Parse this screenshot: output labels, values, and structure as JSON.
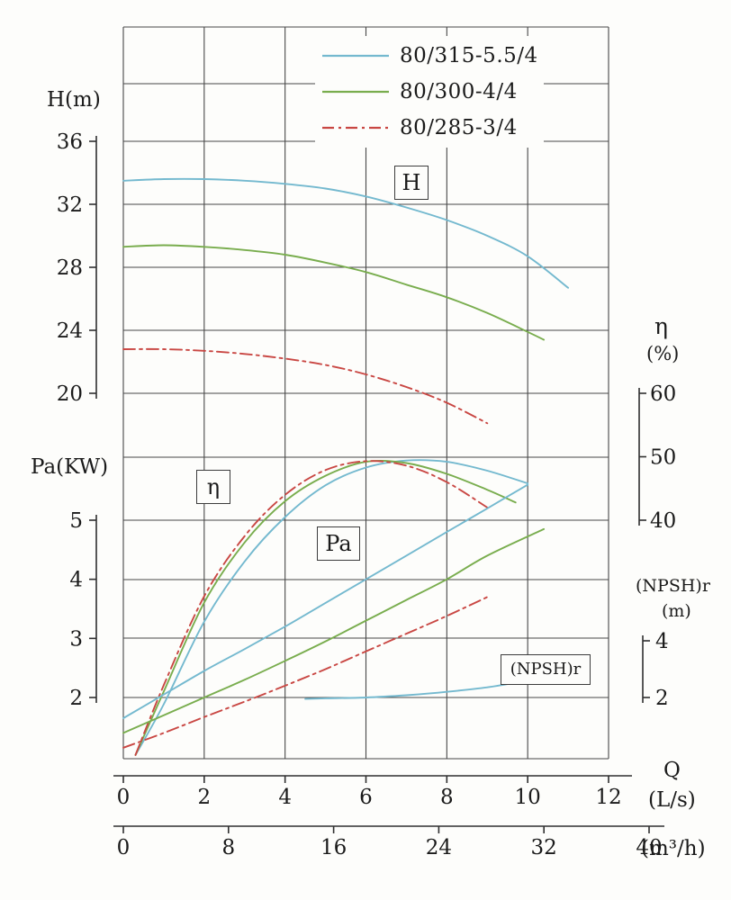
{
  "page": {
    "background": "#fdfdfb",
    "grid_color": "#474747",
    "text_color": "#1a1a1a"
  },
  "legend": {
    "items": [
      {
        "label": "80/315-5.5/4",
        "color": "#74b9cf",
        "dasharray": "none"
      },
      {
        "label": "80/300-4/4",
        "color": "#79ad4e",
        "dasharray": "none"
      },
      {
        "label": "80/285-3/4",
        "color": "#c94743",
        "dasharray": "13 5 3 5"
      }
    ]
  },
  "axis_titles": {
    "h": "H(m)",
    "pa": "Pa(KW)",
    "eta": "η",
    "eta_unit": "(%)",
    "npsh": "(NPSH)r",
    "npsh_unit": "(m)",
    "q": "Q",
    "q_unit": "(L/s)",
    "q2_unit": "(m³/h)"
  },
  "annotations": {
    "h": "H",
    "eta": "η",
    "pa": "Pa",
    "npshr": "(NPSH)r"
  },
  "chart_data": {
    "type": "line",
    "title": "",
    "x_axis": {
      "name": "Q",
      "unit": "(L/s)",
      "ticks": [
        0,
        2,
        4,
        6,
        8,
        10,
        12
      ],
      "range": [
        0,
        12
      ]
    },
    "x_axis_secondary": {
      "unit": "(m³/h)",
      "ticks": [
        0,
        8,
        16,
        24,
        32,
        40
      ]
    },
    "y_axes": {
      "H": {
        "title": "H(m)",
        "ticks": [
          36,
          32,
          28,
          24,
          20
        ]
      },
      "eta": {
        "title": "η (%)",
        "ticks": [
          60,
          50,
          40
        ]
      },
      "Pa": {
        "title": "Pa(KW)",
        "ticks": [
          5,
          4,
          3,
          2
        ]
      },
      "npsh": {
        "title": "(NPSH)r (m)",
        "ticks": [
          4,
          2
        ]
      }
    },
    "grid": true,
    "legend_position": "top",
    "series": [
      {
        "name": "H 80/315-5.5/4",
        "model": "80/315-5.5/4",
        "family": "H",
        "axis": "H",
        "color": "#74b9cf",
        "style": "solid",
        "points": [
          [
            0,
            33.5
          ],
          [
            1,
            33.6
          ],
          [
            2,
            33.6
          ],
          [
            3,
            33.5
          ],
          [
            4,
            33.3
          ],
          [
            5,
            33.0
          ],
          [
            6,
            32.5
          ],
          [
            7,
            31.8
          ],
          [
            8,
            31.0
          ],
          [
            9,
            30.0
          ],
          [
            10,
            28.7
          ],
          [
            11,
            26.7
          ]
        ]
      },
      {
        "name": "H 80/300-4/4",
        "model": "80/300-4/4",
        "family": "H",
        "axis": "H",
        "color": "#79ad4e",
        "style": "solid",
        "points": [
          [
            0,
            29.3
          ],
          [
            1,
            29.4
          ],
          [
            2,
            29.3
          ],
          [
            3,
            29.1
          ],
          [
            4,
            28.8
          ],
          [
            5,
            28.3
          ],
          [
            6,
            27.7
          ],
          [
            7,
            26.9
          ],
          [
            8,
            26.1
          ],
          [
            9,
            25.1
          ],
          [
            10,
            23.9
          ],
          [
            10.4,
            23.4
          ]
        ]
      },
      {
        "name": "H 80/285-3/4",
        "model": "80/285-3/4",
        "family": "H",
        "axis": "H",
        "color": "#c94743",
        "style": "dashdot",
        "points": [
          [
            0,
            22.8
          ],
          [
            1,
            22.8
          ],
          [
            2,
            22.7
          ],
          [
            3,
            22.5
          ],
          [
            4,
            22.2
          ],
          [
            5,
            21.8
          ],
          [
            6,
            21.2
          ],
          [
            7,
            20.4
          ],
          [
            8,
            19.4
          ],
          [
            9,
            18.1
          ]
        ]
      },
      {
        "name": "eta 80/315-5.5/4",
        "model": "80/315-5.5/4",
        "family": "eta",
        "axis": "eta",
        "color": "#74b9cf",
        "style": "solid",
        "points": [
          [
            0.3,
            3
          ],
          [
            1,
            11
          ],
          [
            2,
            24
          ],
          [
            3,
            33.5
          ],
          [
            4,
            40.5
          ],
          [
            5,
            45.5
          ],
          [
            6,
            48.3
          ],
          [
            7,
            49.4
          ],
          [
            8,
            49.2
          ],
          [
            9,
            47.8
          ],
          [
            10,
            45.8
          ]
        ]
      },
      {
        "name": "eta 80/300-4/4",
        "model": "80/300-4/4",
        "family": "eta",
        "axis": "eta",
        "color": "#79ad4e",
        "style": "solid",
        "points": [
          [
            0.3,
            3
          ],
          [
            1,
            13
          ],
          [
            2,
            27
          ],
          [
            3,
            36.5
          ],
          [
            4,
            43.0
          ],
          [
            5,
            47.0
          ],
          [
            6,
            49.2
          ],
          [
            7,
            49.0
          ],
          [
            8,
            47.3
          ],
          [
            9,
            44.8
          ],
          [
            9.7,
            42.8
          ]
        ]
      },
      {
        "name": "eta 80/285-3/4",
        "model": "80/285-3/4",
        "family": "eta",
        "axis": "eta",
        "color": "#c94743",
        "style": "dashdot",
        "points": [
          [
            0.3,
            3
          ],
          [
            1,
            14
          ],
          [
            2,
            28
          ],
          [
            3,
            37.5
          ],
          [
            4,
            44.0
          ],
          [
            5,
            47.9
          ],
          [
            6,
            49.3
          ],
          [
            7,
            48.6
          ],
          [
            8,
            46.0
          ],
          [
            9,
            42.0
          ]
        ]
      },
      {
        "name": "Pa 80/315-5.5/4",
        "model": "80/315-5.5/4",
        "family": "Pa",
        "axis": "Pa",
        "color": "#74b9cf",
        "style": "solid",
        "points": [
          [
            0,
            1.65
          ],
          [
            1,
            2.05
          ],
          [
            2,
            2.45
          ],
          [
            3,
            2.82
          ],
          [
            4,
            3.2
          ],
          [
            5,
            3.6
          ],
          [
            6,
            4.0
          ],
          [
            7,
            4.4
          ],
          [
            8,
            4.8
          ],
          [
            9,
            5.2
          ],
          [
            10,
            5.6
          ]
        ]
      },
      {
        "name": "Pa 80/300-4/4",
        "model": "80/300-4/4",
        "family": "Pa",
        "axis": "Pa",
        "color": "#79ad4e",
        "style": "solid",
        "points": [
          [
            0,
            1.4
          ],
          [
            1,
            1.7
          ],
          [
            2,
            2.0
          ],
          [
            3,
            2.3
          ],
          [
            4,
            2.62
          ],
          [
            5,
            2.95
          ],
          [
            6,
            3.3
          ],
          [
            7,
            3.65
          ],
          [
            8,
            4.0
          ],
          [
            9,
            4.4
          ],
          [
            10.4,
            4.85
          ]
        ]
      },
      {
        "name": "Pa 80/285-3/4",
        "model": "80/285-3/4",
        "family": "Pa",
        "axis": "Pa",
        "color": "#c94743",
        "style": "dashdot",
        "points": [
          [
            0,
            1.15
          ],
          [
            1,
            1.4
          ],
          [
            2,
            1.67
          ],
          [
            3,
            1.93
          ],
          [
            4,
            2.2
          ],
          [
            5,
            2.48
          ],
          [
            6,
            2.78
          ],
          [
            7,
            3.08
          ],
          [
            8,
            3.38
          ],
          [
            9,
            3.7
          ]
        ]
      },
      {
        "name": "NPSHr 80/315-5.5/4",
        "model": "80/315-5.5/4",
        "family": "npsh",
        "axis": "npsh",
        "color": "#74b9cf",
        "style": "solid",
        "points": [
          [
            4.5,
            1.95
          ],
          [
            5,
            1.97
          ],
          [
            6,
            2.0
          ],
          [
            7,
            2.08
          ],
          [
            8,
            2.2
          ],
          [
            9,
            2.36
          ],
          [
            9.8,
            2.55
          ]
        ]
      }
    ]
  }
}
